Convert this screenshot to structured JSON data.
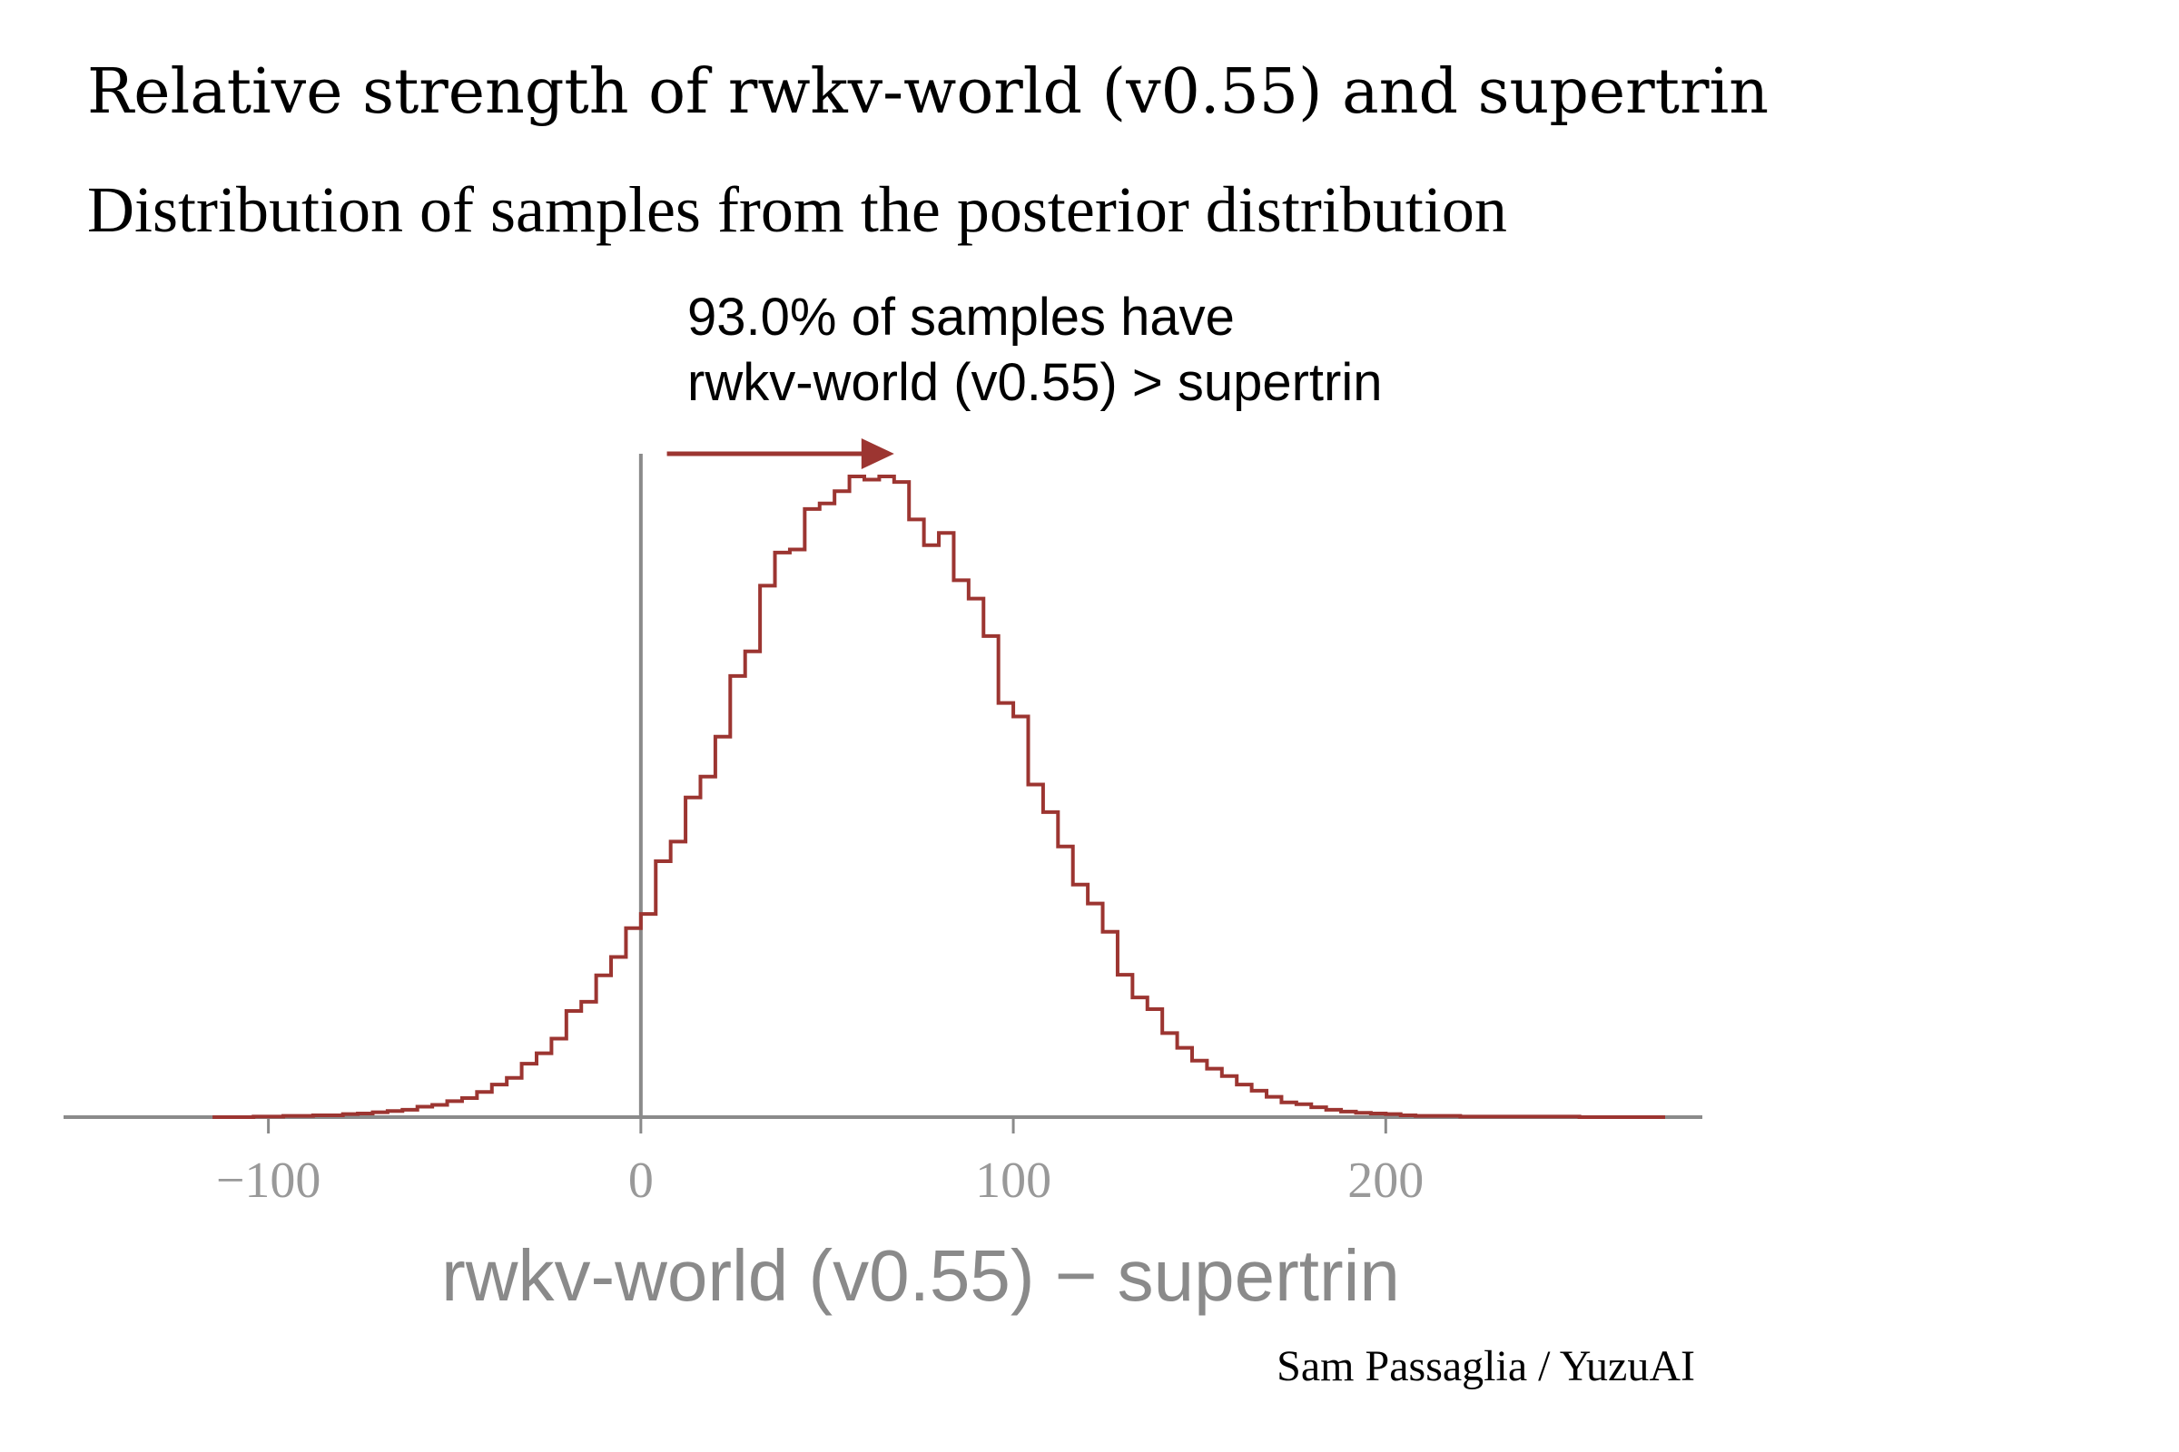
{
  "chart_data": {
    "type": "step-histogram",
    "title": "Relative strength of rwkv-world (v0.55) and supertrin",
    "subtitle": "Distribution of samples from the posterior distribution",
    "xlabel": "rwkv-world (v0.55) − supertrin",
    "credit": "Sam Passaglia / YuzuAI",
    "annotation": {
      "line1": "93.0% of samples have",
      "line2": "rwkv-world (v0.55) > supertrin",
      "arrow_from_x": 7,
      "arrow_to_x": 68
    },
    "reference_line_x": 0,
    "xlim": [
      -155,
      285
    ],
    "ylim": [
      0,
      1.05
    ],
    "x_ticks": [
      {
        "value": -100,
        "label": "−100"
      },
      {
        "value": 0,
        "label": "0"
      },
      {
        "value": 100,
        "label": "100"
      },
      {
        "value": 200,
        "label": "200"
      }
    ],
    "series_color": "#9c3531",
    "axis_color": "#8a8a8a",
    "bin_start": -104,
    "bin_width": 4,
    "densities": [
      0.001,
      0.001,
      0.002,
      0.002,
      0.003,
      0.003,
      0.005,
      0.006,
      0.008,
      0.01,
      0.012,
      0.017,
      0.02,
      0.026,
      0.031,
      0.041,
      0.053,
      0.064,
      0.087,
      0.104,
      0.128,
      0.173,
      0.188,
      0.231,
      0.261,
      0.308,
      0.331,
      0.417,
      0.449,
      0.521,
      0.555,
      0.62,
      0.719,
      0.759,
      0.866,
      0.92,
      0.925,
      0.991,
      1.0,
      1.02,
      1.044,
      1.039,
      1.044,
      1.035,
      0.974,
      0.932,
      0.952,
      0.875,
      0.845,
      0.784,
      0.675,
      0.653,
      0.542,
      0.497,
      0.441,
      0.379,
      0.348,
      0.302,
      0.232,
      0.195,
      0.176,
      0.137,
      0.113,
      0.092,
      0.079,
      0.067,
      0.053,
      0.043,
      0.033,
      0.024,
      0.021,
      0.016,
      0.012,
      0.009,
      0.007,
      0.006,
      0.005,
      0.003,
      0.002,
      0.002,
      0.002,
      0.001,
      0.001,
      0.001,
      0.001,
      0.001,
      0.001,
      0.001,
      0.001
    ]
  }
}
